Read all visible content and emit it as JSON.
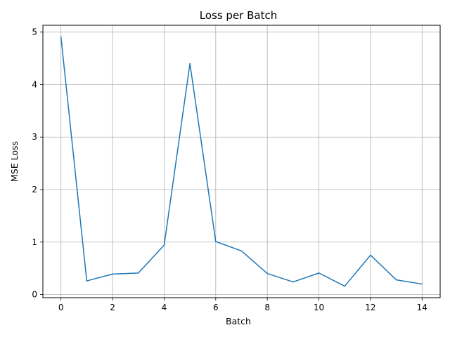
{
  "chart_data": {
    "type": "line",
    "title": "Loss per Batch",
    "xlabel": "Batch",
    "ylabel": "MSE Loss",
    "x": [
      0,
      1,
      2,
      3,
      4,
      5,
      6,
      7,
      8,
      9,
      10,
      11,
      12,
      13,
      14
    ],
    "y": [
      4.91,
      0.26,
      0.39,
      0.41,
      0.94,
      4.4,
      1.01,
      0.83,
      0.4,
      0.24,
      0.41,
      0.16,
      0.75,
      0.28,
      0.2
    ],
    "xlim": [
      -0.7,
      14.7
    ],
    "ylim": [
      -0.06,
      5.13
    ],
    "xticks": [
      "0",
      "2",
      "4",
      "6",
      "8",
      "10",
      "12",
      "14"
    ],
    "yticks": [
      "0",
      "1",
      "2",
      "3",
      "4",
      "5"
    ],
    "grid": true,
    "line_color": "#1f77b4",
    "grid_color": "#b0b0b0"
  }
}
